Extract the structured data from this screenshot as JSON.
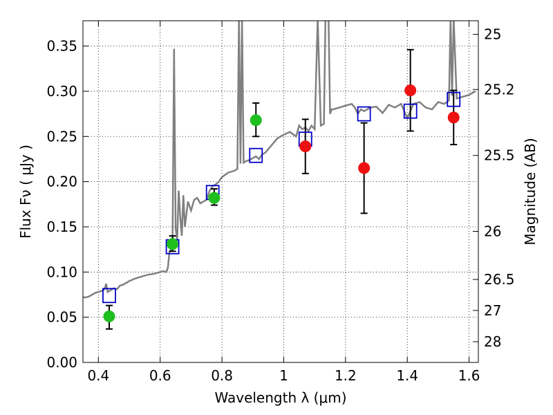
{
  "chart_data": {
    "type": "scatter",
    "title": "",
    "xlabel": "Wavelength  λ (μm)",
    "ylabel": "Flux  Fν  ( μJy )",
    "y2label": "Magnitude (AB)",
    "xlim": [
      0.35,
      1.63
    ],
    "ylim": [
      0.0,
      0.378
    ],
    "grid": true,
    "xticks": [
      0.4,
      0.6,
      0.8,
      1.0,
      1.2,
      1.4,
      1.6
    ],
    "xtick_labels": [
      "0.4",
      "0.6",
      "0.8",
      "1",
      "1.2",
      "1.4",
      "1.6"
    ],
    "yticks": [
      0.0,
      0.05,
      0.1,
      0.15,
      0.2,
      0.25,
      0.3,
      0.35
    ],
    "ytick_labels": [
      "0.00",
      "0.05",
      "0.10",
      "0.15",
      "0.20",
      "0.25",
      "0.30",
      "0.35"
    ],
    "y2ticks": [
      {
        "label": "25",
        "flux": 0.363
      },
      {
        "label": "25.2",
        "flux": 0.302
      },
      {
        "label": "25.5",
        "flux": 0.229
      },
      {
        "label": "26",
        "flux": 0.145
      },
      {
        "label": "26.5",
        "flux": 0.0918
      },
      {
        "label": "27",
        "flux": 0.0575
      },
      {
        "label": "28",
        "flux": 0.0229
      }
    ],
    "colors": {
      "spectrum": "#808080",
      "model": "#0000c8",
      "green": "#1fbf1f",
      "red": "#ee1111",
      "errorbar": "#000000"
    },
    "series": [
      {
        "type": "line",
        "x": [
          0.35,
          0.36,
          0.37,
          0.38,
          0.39,
          0.4,
          0.41,
          0.42,
          0.425,
          0.43,
          0.44,
          0.45,
          0.46,
          0.47,
          0.48,
          0.49,
          0.5,
          0.52,
          0.54,
          0.56,
          0.58,
          0.6,
          0.61,
          0.62,
          0.625,
          0.63,
          0.635,
          0.64,
          0.645,
          0.65,
          0.655,
          0.66,
          0.665,
          0.67,
          0.675,
          0.68,
          0.69,
          0.7,
          0.71,
          0.72,
          0.73,
          0.74,
          0.75,
          0.76,
          0.77,
          0.78,
          0.79,
          0.8,
          0.82,
          0.84,
          0.85,
          0.855,
          0.86,
          0.865,
          0.87,
          0.88,
          0.89,
          0.9,
          0.91,
          0.92,
          0.93,
          0.94,
          0.96,
          0.98,
          1.0,
          1.02,
          1.04,
          1.05,
          1.06,
          1.07,
          1.08,
          1.09,
          1.1,
          1.11,
          1.12,
          1.13,
          1.135,
          1.14,
          1.145,
          1.15,
          1.155,
          1.16,
          1.18,
          1.2,
          1.22,
          1.23,
          1.24,
          1.25,
          1.26,
          1.28,
          1.3,
          1.32,
          1.34,
          1.36,
          1.38,
          1.4,
          1.42,
          1.44,
          1.46,
          1.48,
          1.5,
          1.52,
          1.535,
          1.54,
          1.545,
          1.55,
          1.56,
          1.58,
          1.6,
          1.62
        ],
        "y": [
          0.072,
          0.072,
          0.073,
          0.075,
          0.077,
          0.078,
          0.079,
          0.081,
          0.087,
          0.078,
          0.08,
          0.082,
          0.081,
          0.085,
          0.086,
          0.088,
          0.09,
          0.093,
          0.095,
          0.097,
          0.098,
          0.1,
          0.101,
          0.1,
          0.105,
          0.122,
          0.125,
          0.13,
          0.347,
          0.148,
          0.135,
          0.19,
          0.16,
          0.14,
          0.185,
          0.15,
          0.178,
          0.168,
          0.18,
          0.182,
          0.176,
          0.178,
          0.18,
          0.19,
          0.195,
          0.197,
          0.2,
          0.205,
          0.21,
          0.212,
          0.214,
          0.38,
          0.22,
          0.38,
          0.221,
          0.223,
          0.224,
          0.226,
          0.228,
          0.225,
          0.23,
          0.232,
          0.24,
          0.248,
          0.252,
          0.255,
          0.25,
          0.262,
          0.258,
          0.26,
          0.256,
          0.262,
          0.258,
          0.38,
          0.262,
          0.264,
          0.38,
          0.38,
          0.38,
          0.275,
          0.28,
          0.28,
          0.282,
          0.284,
          0.286,
          0.282,
          0.275,
          0.28,
          0.278,
          0.282,
          0.283,
          0.276,
          0.285,
          0.282,
          0.286,
          0.27,
          0.286,
          0.288,
          0.282,
          0.28,
          0.288,
          0.286,
          0.29,
          0.38,
          0.295,
          0.38,
          0.292,
          0.294,
          0.296,
          0.3
        ]
      },
      {
        "type": "scatter",
        "marker": "square",
        "x": [
          0.435,
          0.64,
          0.77,
          0.91,
          1.07,
          1.26,
          1.41,
          1.55
        ],
        "y": [
          0.074,
          0.128,
          0.188,
          0.229,
          0.247,
          0.275,
          0.278,
          0.291
        ]
      },
      {
        "type": "errorbar",
        "marker": "circle",
        "x": [
          0.435,
          0.64,
          0.775,
          0.91
        ],
        "y": [
          0.051,
          0.131,
          0.182,
          0.268
        ],
        "yerr_low": [
          0.014,
          0.008,
          0.008,
          0.018
        ],
        "yerr_high": [
          0.012,
          0.009,
          0.01,
          0.019
        ]
      },
      {
        "type": "errorbar",
        "marker": "circle",
        "x": [
          1.07,
          1.26,
          1.41,
          1.55
        ],
        "y": [
          0.239,
          0.215,
          0.301,
          0.271
        ],
        "yerr_low": [
          0.03,
          0.05,
          0.045,
          0.03
        ],
        "yerr_high": [
          0.03,
          0.05,
          0.045,
          0.03
        ]
      }
    ]
  }
}
